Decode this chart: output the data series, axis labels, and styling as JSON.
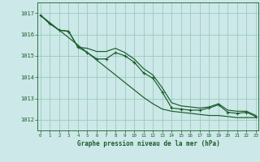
{
  "title": "Graphe pression niveau de la mer (hPa)",
  "bg_color": "#cce8e8",
  "plot_bg_color": "#cce8e8",
  "grid_color": "#99ccbb",
  "line_color": "#1a5c2a",
  "ylim": [
    1011.5,
    1017.5
  ],
  "yticks": [
    1012,
    1013,
    1014,
    1015,
    1016,
    1017
  ],
  "xlim": [
    -0.3,
    23.3
  ],
  "xticks": [
    0,
    1,
    2,
    3,
    4,
    5,
    6,
    7,
    8,
    9,
    10,
    11,
    12,
    13,
    14,
    15,
    16,
    17,
    18,
    19,
    20,
    21,
    22,
    23
  ],
  "hours": [
    0,
    1,
    2,
    3,
    4,
    5,
    6,
    7,
    8,
    9,
    10,
    11,
    12,
    13,
    14,
    15,
    16,
    17,
    18,
    19,
    20,
    21,
    22,
    23
  ],
  "pressure_main": [
    1016.9,
    1016.5,
    1016.2,
    1016.15,
    1015.4,
    1015.15,
    1014.85,
    1014.85,
    1015.15,
    1015.0,
    1014.7,
    1014.2,
    1013.95,
    1013.3,
    1012.55,
    1012.5,
    1012.45,
    1012.45,
    1012.55,
    1012.7,
    1012.35,
    1012.3,
    1012.35,
    1012.15
  ],
  "pressure_upper": [
    1016.9,
    1016.5,
    1016.2,
    1016.15,
    1015.4,
    1015.35,
    1015.2,
    1015.2,
    1015.35,
    1015.15,
    1014.85,
    1014.4,
    1014.1,
    1013.5,
    1012.8,
    1012.65,
    1012.6,
    1012.55,
    1012.6,
    1012.75,
    1012.45,
    1012.4,
    1012.4,
    1012.2
  ],
  "pressure_trend": [
    1016.9,
    1016.55,
    1016.2,
    1015.85,
    1015.5,
    1015.15,
    1014.8,
    1014.45,
    1014.1,
    1013.75,
    1013.4,
    1013.05,
    1012.75,
    1012.5,
    1012.4,
    1012.35,
    1012.3,
    1012.25,
    1012.2,
    1012.2,
    1012.15,
    1012.1,
    1012.1,
    1012.1
  ]
}
